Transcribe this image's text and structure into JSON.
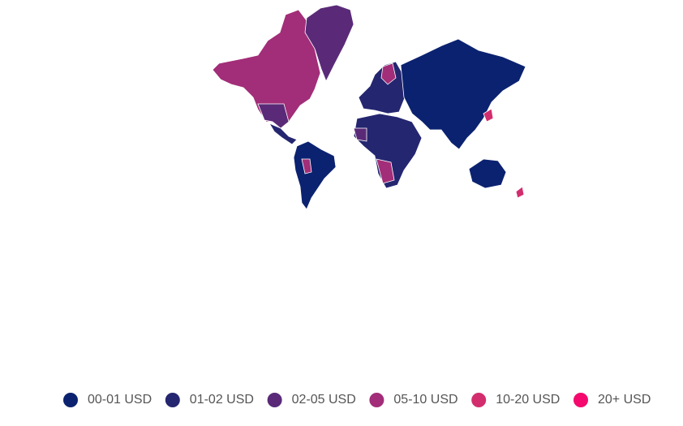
{
  "legend": {
    "items": [
      {
        "label": "00-01 USD",
        "color": "#0b2270"
      },
      {
        "label": "01-02 USD",
        "color": "#242670"
      },
      {
        "label": "02-05 USD",
        "color": "#5a2a78"
      },
      {
        "label": "05-10 USD",
        "color": "#a22d78"
      },
      {
        "label": "10-20 USD",
        "color": "#d22e6e"
      },
      {
        "label": "20+ USD",
        "color": "#f5096e"
      }
    ]
  }
}
